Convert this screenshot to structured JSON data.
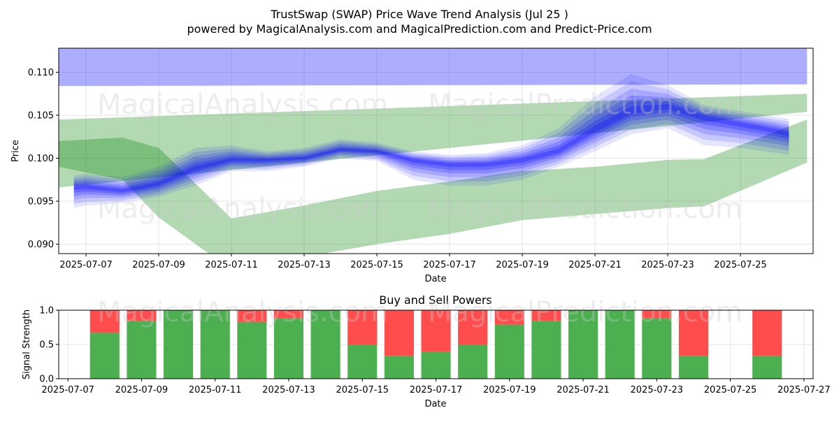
{
  "header": {
    "title": "TrustSwap (SWAP) Price Wave Trend Analysis (Jul 25 )",
    "subtitle": "powered by MagicalAnalysis.com and MagicalPrediction.com and Predict-Price.com"
  },
  "watermarks": [
    "MagicalAnalysis.com",
    "MagicalPrediction.com"
  ],
  "colors": {
    "price_band": "#0000ff",
    "trend_band": "#008000",
    "buy": "#4caf50",
    "sell": "#ff4d4d",
    "grid": "#e6e6e6"
  },
  "chart_data": [
    {
      "type": "area",
      "title": "",
      "xlabel": "Date",
      "ylabel": "Price",
      "ylim": [
        0.0889,
        0.1128
      ],
      "xlim": [
        "2025-07-06 06:00",
        "2025-07-27 00:00"
      ],
      "grid": true,
      "x_ticks": [
        "2025-07-07",
        "2025-07-09",
        "2025-07-11",
        "2025-07-13",
        "2025-07-15",
        "2025-07-17",
        "2025-07-19",
        "2025-07-21",
        "2025-07-23",
        "2025-07-25"
      ],
      "y_ticks": [
        0.09,
        0.095,
        0.1,
        0.105,
        0.11
      ],
      "y_tick_labels": [
        "0.090",
        "0.095",
        "0.100",
        "0.105",
        "0.110"
      ],
      "series": [
        {
          "kind": "price_wave",
          "x": [
            "2025-07-06 16:00",
            "2025-07-07",
            "2025-07-08",
            "2025-07-09",
            "2025-07-10",
            "2025-07-11",
            "2025-07-12",
            "2025-07-13",
            "2025-07-14",
            "2025-07-15",
            "2025-07-16",
            "2025-07-17",
            "2025-07-18",
            "2025-07-19",
            "2025-07-20",
            "2025-07-21",
            "2025-07-22",
            "2025-07-23",
            "2025-07-24",
            "2025-07-25",
            "2025-07-26",
            "2025-07-26 08:00"
          ],
          "mid": [
            0.0966,
            0.0967,
            0.0962,
            0.097,
            0.0988,
            0.0998,
            0.0998,
            0.1,
            0.101,
            0.1008,
            0.0998,
            0.0993,
            0.0993,
            0.0998,
            0.1008,
            0.1033,
            0.1055,
            0.106,
            0.1048,
            0.104,
            0.1032,
            0.1028
          ],
          "upper": [
            0.098,
            0.0982,
            0.0978,
            0.099,
            0.1012,
            0.1015,
            0.1008,
            0.1012,
            0.1022,
            0.1018,
            0.1008,
            0.1004,
            0.1006,
            0.1015,
            0.1035,
            0.1072,
            0.1098,
            0.1085,
            0.1062,
            0.1055,
            0.1048,
            0.1046
          ],
          "lower": [
            0.0942,
            0.0945,
            0.0948,
            0.0955,
            0.0968,
            0.0985,
            0.0985,
            0.099,
            0.1,
            0.0997,
            0.0975,
            0.0968,
            0.0968,
            0.0975,
            0.099,
            0.1008,
            0.1028,
            0.1035,
            0.1015,
            0.1012,
            0.1006,
            0.1004
          ]
        },
        {
          "kind": "trend_band",
          "x": [
            "2025-07-06 06:00",
            "2025-07-26 20:00"
          ],
          "y_lower": [
            0.0966,
            0.1054
          ],
          "y_upper": [
            0.1045,
            0.1075
          ]
        },
        {
          "kind": "trend_band",
          "x": [
            "2025-07-06 06:00",
            "2025-07-26 20:00"
          ],
          "y_lower": [
            0.1084,
            0.1086
          ],
          "y_upper": [
            0.113,
            0.113
          ]
        },
        {
          "kind": "trend_band",
          "x": [
            "2025-07-06 06:00",
            "2025-07-08",
            "2025-07-09",
            "2025-07-11",
            "2025-07-13",
            "2025-07-15",
            "2025-07-17",
            "2025-07-19",
            "2025-07-21",
            "2025-07-23",
            "2025-07-24",
            "2025-07-26 20:00"
          ],
          "y_lower": [
            0.099,
            0.0975,
            0.0931,
            0.087,
            0.0885,
            0.09,
            0.0912,
            0.0928,
            0.0935,
            0.0942,
            0.0944,
            0.0995
          ],
          "y_upper": [
            0.102,
            0.1024,
            0.1012,
            0.093,
            0.0945,
            0.0962,
            0.0973,
            0.0985,
            0.099,
            0.0998,
            0.0999,
            0.1045
          ]
        }
      ]
    },
    {
      "type": "bar",
      "title": "Buy and Sell Powers",
      "xlabel": "Date",
      "ylabel": "Signal Strength",
      "ylim": [
        0.0,
        1.0
      ],
      "xlim": [
        "2025-07-06 18:00",
        "2025-07-27 06:00"
      ],
      "grid": true,
      "x_ticks": [
        "2025-07-07",
        "2025-07-09",
        "2025-07-11",
        "2025-07-13",
        "2025-07-15",
        "2025-07-17",
        "2025-07-19",
        "2025-07-21",
        "2025-07-23",
        "2025-07-25",
        "2025-07-27"
      ],
      "y_ticks": [
        0.0,
        0.5,
        1.0
      ],
      "y_tick_labels": [
        "0.0",
        "0.5",
        "1.0"
      ],
      "categories": [
        "2025-07-08",
        "2025-07-09",
        "2025-07-10",
        "2025-07-11",
        "2025-07-12",
        "2025-07-13",
        "2025-07-14",
        "2025-07-15",
        "2025-07-16",
        "2025-07-17",
        "2025-07-18",
        "2025-07-19",
        "2025-07-20",
        "2025-07-21",
        "2025-07-22",
        "2025-07-23",
        "2025-07-24",
        "2025-07-25",
        "2025-07-26"
      ],
      "series": [
        {
          "key": "buy",
          "values": [
            0.67,
            0.84,
            1.0,
            1.0,
            0.83,
            0.88,
            1.0,
            0.5,
            0.33,
            0.39,
            0.5,
            0.79,
            0.84,
            1.0,
            1.0,
            0.88,
            0.33,
            0,
            0.33
          ]
        },
        {
          "key": "sell",
          "values": [
            0.33,
            0.16,
            0,
            0,
            0.17,
            0.12,
            0,
            0.5,
            0.67,
            0.61,
            0.5,
            0.21,
            0.16,
            0,
            0,
            0.12,
            0.67,
            0,
            0.67
          ]
        }
      ]
    }
  ]
}
